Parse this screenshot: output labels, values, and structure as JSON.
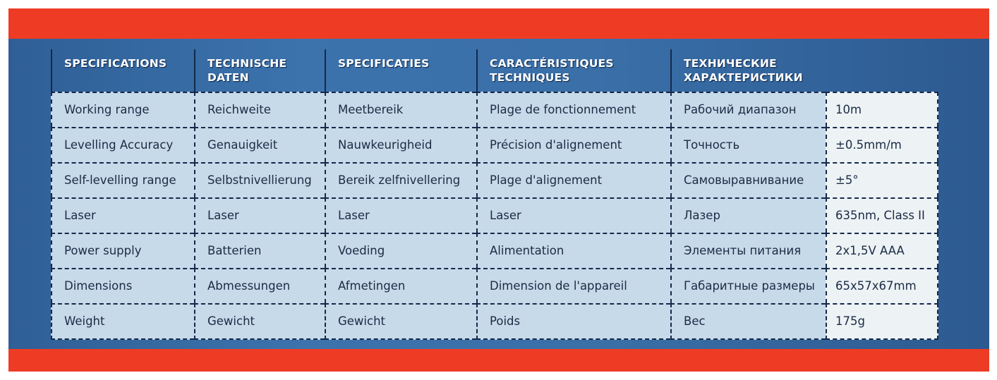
{
  "colors": {
    "band": "#ee3b24",
    "panel": "#3a6fa8",
    "cell": "#c7dae9",
    "value_cell": "#edf2f5",
    "text": "#1b2b45"
  },
  "headers": [
    "SPECIFICATIONS",
    "TECHNISCHE\nDATEN",
    "SPECIFICATIES",
    "CARACTÉRISTIQUES\nTECHNIQUES",
    "ТЕХНИЧЕСКИЕ\nХАРАКТЕРИСТИКИ"
  ],
  "rows": [
    [
      "Working range",
      "Reichweite",
      "Meetbereik",
      "Plage de fonctionnement",
      "Рабочий диапазон",
      "10m"
    ],
    [
      "Levelling Accuracy",
      "Genauigkeit",
      "Nauwkeurigheid",
      "Précision d'alignement",
      "Точность",
      "±0.5mm/m"
    ],
    [
      "Self-levelling range",
      "Selbstnivellierung",
      "Bereik zelfnivellering",
      "Plage d'alignement",
      "Самовыравнивание",
      "±5°"
    ],
    [
      "Laser",
      "Laser",
      "Laser",
      "Laser",
      "Лазер",
      "635nm, Class II"
    ],
    [
      "Power supply",
      "Batterien",
      "Voeding",
      "Alimentation",
      "Элементы питания",
      "2x1,5V AAA"
    ],
    [
      "Dimensions",
      "Abmessungen",
      "Afmetingen",
      "Dimension de l'appareil",
      "Габаритные размеры",
      "65x57x67mm"
    ],
    [
      "Weight",
      "Gewicht",
      "Gewicht",
      "Poids",
      "Вес",
      "175g"
    ]
  ]
}
